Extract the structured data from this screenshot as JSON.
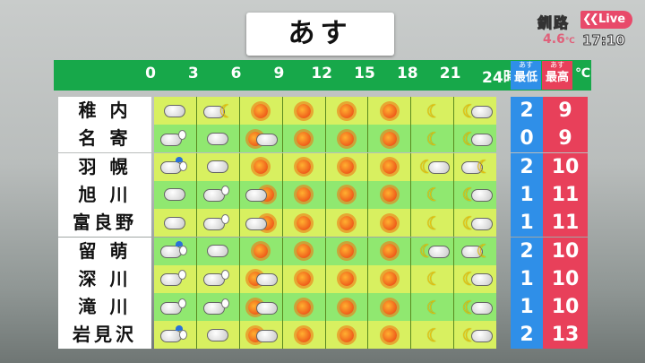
{
  "title": "あす",
  "station": {
    "location": "釧路",
    "live_label": "Live",
    "temperature": "4.6",
    "temp_unit": "℃",
    "time": "17:10"
  },
  "header": {
    "hours": [
      "0",
      "3",
      "6",
      "9",
      "12",
      "15",
      "18",
      "21",
      "24時"
    ],
    "low_top": "あす",
    "low_label": "最低",
    "high_top": "あす",
    "high_label": "最高",
    "unit": "℃"
  },
  "colors": {
    "header_green": "#17a84a",
    "low_blue": "#2f8fe8",
    "high_pink": "#e8405a",
    "row_yellow": "#d8f060",
    "row_green": "#90e870"
  },
  "rows": [
    {
      "name": "稚 内",
      "icons": [
        "cloud",
        "cloud-moon",
        "sun",
        "sun",
        "sun",
        "sun",
        "moon",
        "moon-cloud"
      ],
      "low": "2",
      "high": "9"
    },
    {
      "name": "名 寄",
      "icons": [
        "cloud-snow",
        "cloud",
        "sun-cloud",
        "sun",
        "sun",
        "sun",
        "moon",
        "moon-cloud"
      ],
      "low": "0",
      "high": "9"
    },
    {
      "name": "羽 幌",
      "icons": [
        "cloud-rain-snow",
        "cloud",
        "sun",
        "sun",
        "sun",
        "sun",
        "moon-cloud",
        "cloud-moon"
      ],
      "low": "2",
      "high": "10"
    },
    {
      "name": "旭 川",
      "icons": [
        "cloud",
        "cloud-snow",
        "cloud-sun",
        "sun",
        "sun",
        "sun",
        "moon",
        "moon-cloud"
      ],
      "low": "1",
      "high": "11"
    },
    {
      "name": "富良野",
      "icons": [
        "cloud",
        "cloud-snow",
        "cloud-sun",
        "sun",
        "sun",
        "sun",
        "moon",
        "moon-cloud"
      ],
      "low": "1",
      "high": "11"
    },
    {
      "name": "留 萌",
      "icons": [
        "cloud-rain-snow",
        "cloud",
        "sun",
        "sun",
        "sun",
        "sun",
        "moon-cloud",
        "cloud-moon"
      ],
      "low": "2",
      "high": "10"
    },
    {
      "name": "深 川",
      "icons": [
        "cloud-snow",
        "cloud-snow",
        "sun-cloud",
        "sun",
        "sun",
        "sun",
        "moon",
        "moon-cloud"
      ],
      "low": "1",
      "high": "10"
    },
    {
      "name": "滝 川",
      "icons": [
        "cloud-snow",
        "cloud-snow",
        "sun-cloud",
        "sun",
        "sun",
        "sun",
        "moon",
        "moon-cloud"
      ],
      "low": "1",
      "high": "10"
    },
    {
      "name": "岩見沢",
      "icons": [
        "cloud-rain-snow",
        "cloud",
        "sun-cloud",
        "sun",
        "sun",
        "sun",
        "moon",
        "moon-cloud"
      ],
      "low": "2",
      "high": "13"
    }
  ]
}
